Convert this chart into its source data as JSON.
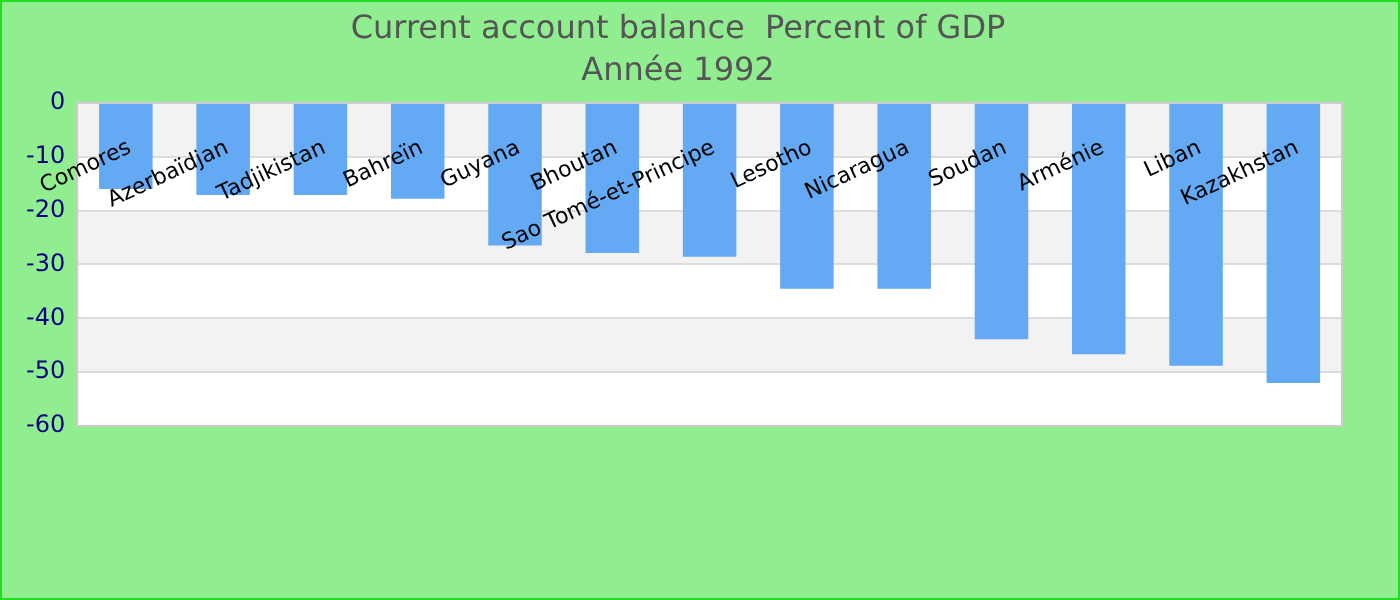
{
  "chart_data": {
    "type": "bar",
    "title": "Current account balance  Percent of GDP",
    "subtitle": "Année 1992",
    "categories": [
      "Comores",
      "Azerbaïdjan",
      "Tadjikistan",
      "Bahreïn",
      "Guyana",
      "Bhoutan",
      "Sao Tomé-et-Principe",
      "Lesotho",
      "Nicaragua",
      "Soudan",
      "Arménie",
      "Liban",
      "Kazakhstan"
    ],
    "values": [
      -16.0,
      -17.1,
      -17.1,
      -17.8,
      -26.5,
      -27.9,
      -28.6,
      -34.5,
      -34.5,
      -43.9,
      -46.7,
      -48.8,
      -52.0
    ],
    "color": "#63a9f4",
    "ylim": [
      -60,
      0
    ],
    "yticks": [
      0,
      -10,
      -20,
      -30,
      -40,
      -50,
      -60
    ],
    "grid": true
  }
}
